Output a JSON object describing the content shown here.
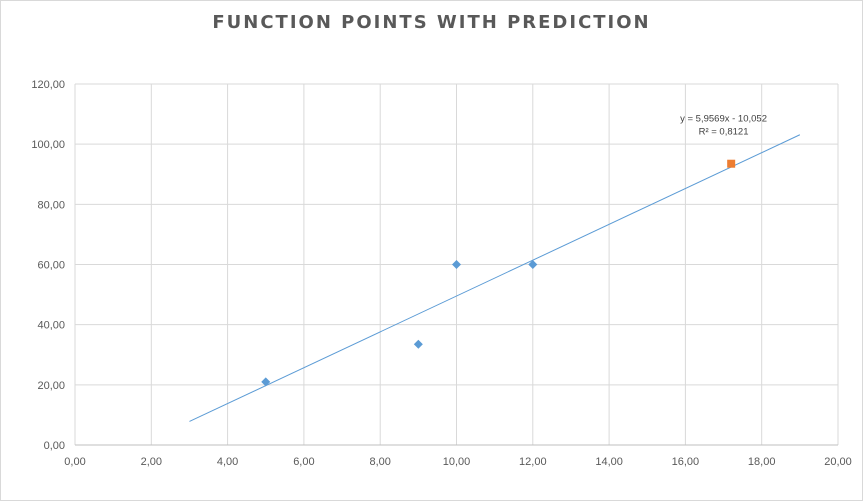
{
  "chart_data": {
    "type": "scatter",
    "title": "FUNCTION POINTS WITH PREDICTION",
    "xlim": [
      0,
      20
    ],
    "ylim": [
      0,
      120
    ],
    "xticks": [
      "0,00",
      "2,00",
      "4,00",
      "6,00",
      "8,00",
      "10,00",
      "12,00",
      "14,00",
      "16,00",
      "18,00",
      "20,00"
    ],
    "yticks": [
      "0,00",
      "20,00",
      "40,00",
      "60,00",
      "80,00",
      "100,00",
      "120,00"
    ],
    "grid": true,
    "legend": "none",
    "series": [
      {
        "marker": "diamond",
        "color": "#5b9bd5",
        "points": [
          {
            "x": 5,
            "y": 21
          },
          {
            "x": 9,
            "y": 33.5
          },
          {
            "x": 10,
            "y": 60
          },
          {
            "x": 12,
            "y": 60
          }
        ]
      },
      {
        "marker": "square",
        "color": "#ed7d31",
        "points": [
          {
            "x": 17.2,
            "y": 93.5
          }
        ]
      }
    ],
    "trendline": {
      "slope": 5.9569,
      "intercept": -10.052,
      "x_start": 3,
      "x_end": 19,
      "color": "#5b9bd5",
      "equation": "y = 5,9569x - 10,052",
      "r_squared": "R² = 0,8121"
    }
  }
}
